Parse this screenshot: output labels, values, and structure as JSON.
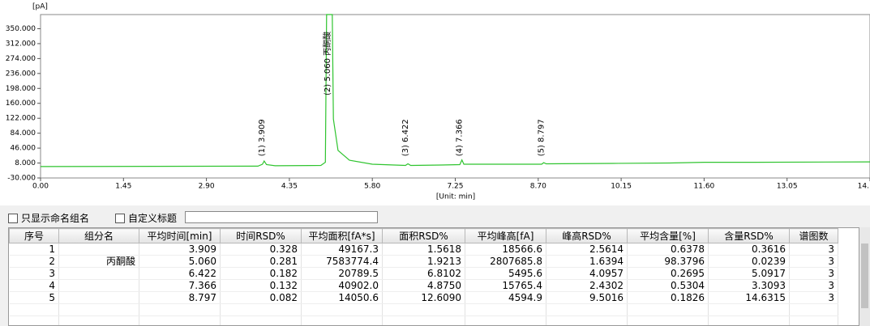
{
  "chart_data": {
    "type": "line",
    "y_unit": "[pA]",
    "x_unit": "[Unit: min]",
    "xlim": [
      0,
      14.5
    ],
    "ylim": [
      -30,
      386
    ],
    "xticks": [
      {
        "value": 0,
        "label": "0.00"
      },
      {
        "value": 1.45,
        "label": "1.45"
      },
      {
        "value": 2.9,
        "label": "2.90"
      },
      {
        "value": 4.35,
        "label": "4.35"
      },
      {
        "value": 5.8,
        "label": "5.80"
      },
      {
        "value": 7.25,
        "label": "7.25"
      },
      {
        "value": 8.7,
        "label": "8.70"
      },
      {
        "value": 10.15,
        "label": "10.15"
      },
      {
        "value": 11.6,
        "label": "11.60"
      },
      {
        "value": 13.05,
        "label": "13.05"
      },
      {
        "value": 14.5,
        "label": "14."
      }
    ],
    "yticks": [
      {
        "value": -30,
        "label": "-30.000"
      },
      {
        "value": 8,
        "label": "8.000"
      },
      {
        "value": 46,
        "label": "46.000"
      },
      {
        "value": 84,
        "label": "84.000"
      },
      {
        "value": 122,
        "label": "122.000"
      },
      {
        "value": 160,
        "label": "160.000"
      },
      {
        "value": 198,
        "label": "198.000"
      },
      {
        "value": 236,
        "label": "236.000"
      },
      {
        "value": 274,
        "label": "274.000"
      },
      {
        "value": 312,
        "label": "312.000"
      },
      {
        "value": 350,
        "label": "350.000"
      }
    ],
    "x": [
      0,
      3.8,
      3.88,
      3.909,
      3.95,
      4.1,
      4.9,
      4.98,
      5.0,
      5.1,
      5.12,
      5.2,
      5.4,
      5.8,
      6.38,
      6.422,
      6.47,
      7.0,
      7.33,
      7.366,
      7.4,
      8.0,
      8.76,
      8.797,
      8.84,
      10.0,
      11.0,
      11.6,
      12.5,
      14.5
    ],
    "series": [
      {
        "color": "#2fc42f",
        "values": [
          -1,
          0,
          5,
          13,
          4,
          1,
          2,
          10,
          386,
          386,
          120,
          40,
          15,
          5,
          2,
          6,
          2,
          3,
          4,
          16,
          5,
          5,
          5,
          9,
          6,
          7,
          8,
          10,
          10,
          11
        ]
      }
    ],
    "annotations": [
      {
        "text": "(1) 3.909",
        "x": 3.909,
        "y": 25
      },
      {
        "text": "(2) 5.060 丙酮酸",
        "x": 5.06,
        "y": 180
      },
      {
        "text": "(3) 6.422",
        "x": 6.422,
        "y": 25
      },
      {
        "text": "(4) 7.366",
        "x": 7.366,
        "y": 25
      },
      {
        "text": "(5) 8.797",
        "x": 8.797,
        "y": 25
      }
    ]
  },
  "controls": {
    "checkbox_named_only": "只显示命名组名",
    "checkbox_custom_title": "自定义标题"
  },
  "table": {
    "columns": [
      "序号",
      "组分名",
      "平均时间[min]",
      "时间RSD%",
      "平均面积[fA*s]",
      "面积RSD%",
      "平均峰高[fA]",
      "峰高RSD%",
      "平均含量[%]",
      "含量RSD%",
      "谱图数"
    ],
    "rows": [
      [
        "1",
        "",
        "3.909",
        "0.328",
        "49167.3",
        "1.5618",
        "18566.6",
        "2.5614",
        "0.6378",
        "0.3616",
        "3"
      ],
      [
        "2",
        "丙酮酸",
        "5.060",
        "0.281",
        "7583774.4",
        "1.9213",
        "2807685.8",
        "1.6394",
        "98.3796",
        "0.0239",
        "3"
      ],
      [
        "3",
        "",
        "6.422",
        "0.182",
        "20789.5",
        "6.8102",
        "5495.6",
        "4.0957",
        "0.2695",
        "5.0917",
        "3"
      ],
      [
        "4",
        "",
        "7.366",
        "0.132",
        "40902.0",
        "4.8750",
        "15765.4",
        "2.4302",
        "0.5304",
        "3.3093",
        "3"
      ],
      [
        "5",
        "",
        "8.797",
        "0.082",
        "14050.6",
        "12.6090",
        "4594.9",
        "9.5016",
        "0.1826",
        "14.6315",
        "3"
      ]
    ]
  }
}
